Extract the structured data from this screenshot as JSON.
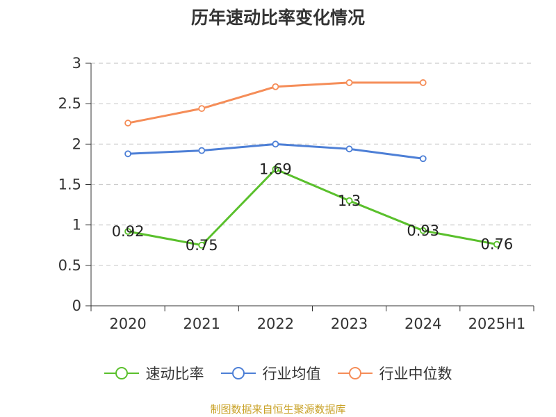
{
  "chart_data": {
    "type": "line",
    "title": "历年速动比率变化情况",
    "categories": [
      "2020",
      "2021",
      "2022",
      "2023",
      "2024",
      "2025H1"
    ],
    "ylim": [
      0,
      3
    ],
    "yticks": [
      "0",
      "0.5",
      "1",
      "1.5",
      "2",
      "2.5",
      "3"
    ],
    "grid": true,
    "legend_position": "bottom",
    "series": [
      {
        "name": "速动比率",
        "color": "#5ac02c",
        "values": [
          0.92,
          0.75,
          1.69,
          1.3,
          0.93,
          0.76
        ],
        "labels": [
          "0.92",
          "0.75",
          "1.69",
          "1.3",
          "0.93",
          "0.76"
        ]
      },
      {
        "name": "行业均值",
        "color": "#4d7fd6",
        "values": [
          1.88,
          1.92,
          2.0,
          1.94,
          1.82,
          null
        ]
      },
      {
        "name": "行业中位数",
        "color": "#f58d58",
        "values": [
          2.26,
          2.44,
          2.71,
          2.76,
          2.76,
          null
        ]
      }
    ],
    "source": "制图数据来自恒生聚源数据库"
  }
}
